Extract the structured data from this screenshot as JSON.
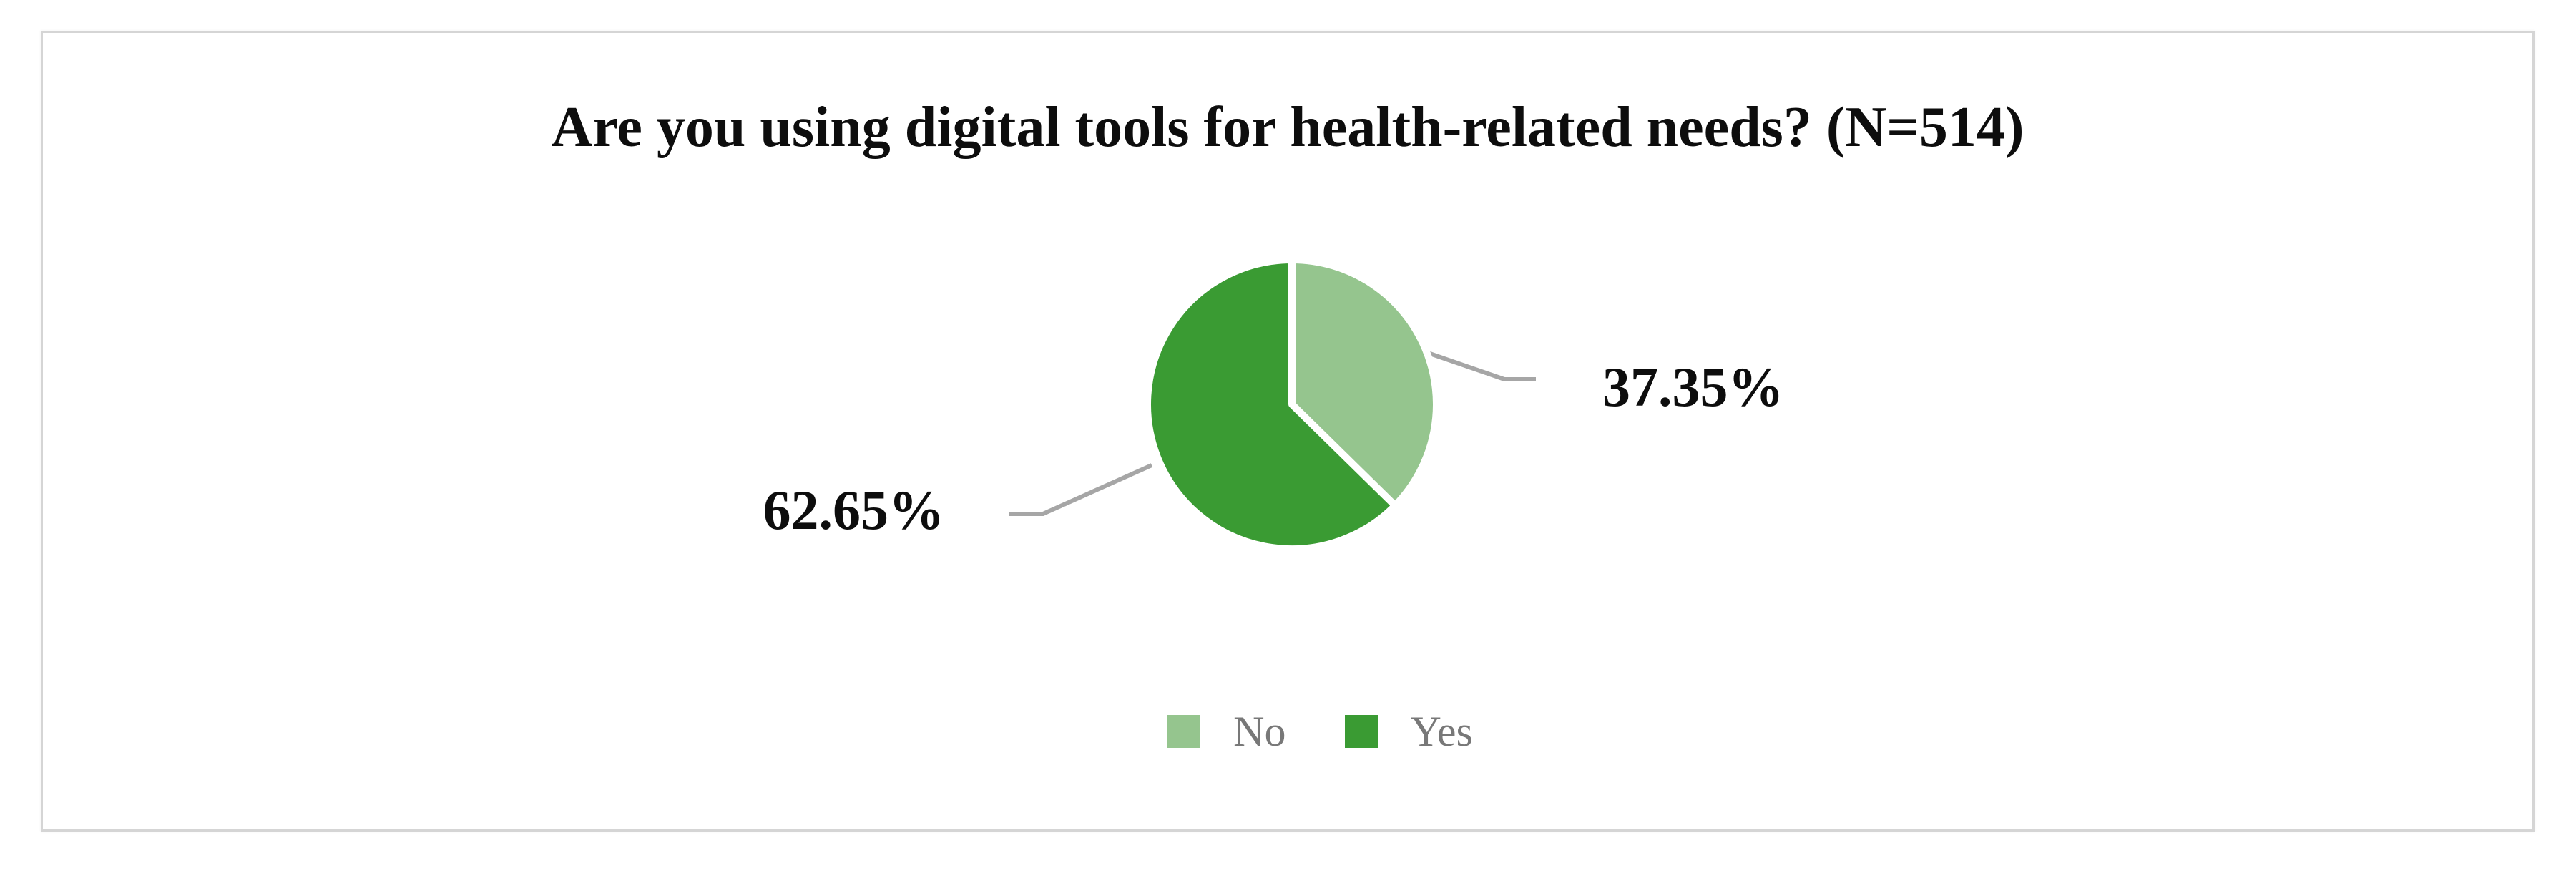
{
  "chart_data": {
    "type": "pie",
    "title": "Are you using digital tools for health-related needs? (N=514)",
    "sample_size": 514,
    "start_angle_deg": 0,
    "direction": "clockwise",
    "legend_position": "bottom",
    "slices": [
      {
        "label": "No",
        "value": 37.35,
        "display": "37.35%",
        "color": "#95c58e"
      },
      {
        "label": "Yes",
        "value": 62.65,
        "display": "62.65%",
        "color": "#3a9b33"
      }
    ]
  },
  "styles": {
    "slice_border_color": "#ffffff",
    "leader_line_color": "#a6a6a6",
    "legend_text_color": "#787878",
    "title_color": "#0d0d0d",
    "frame_border_color": "#d5d5d5"
  }
}
